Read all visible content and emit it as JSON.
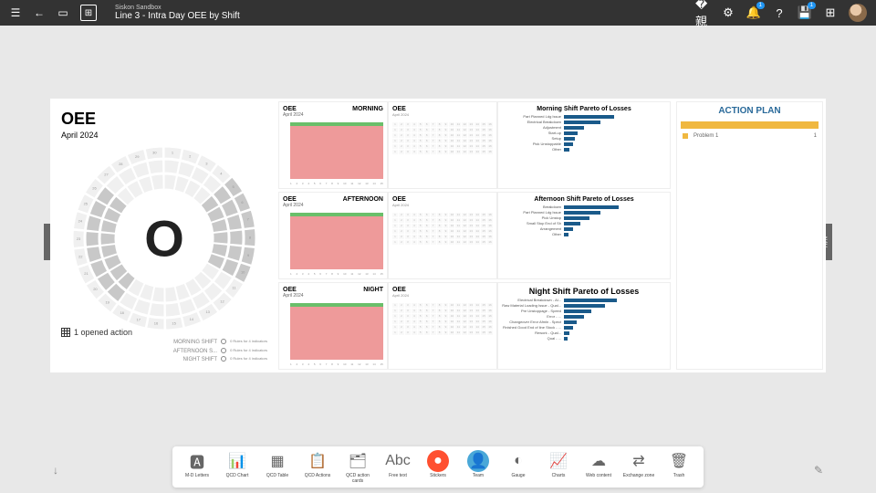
{
  "header": {
    "subtitle": "Siskon Sandbox",
    "title": "Line 3 - Intra Day OEE by Shift",
    "notif_badge": "1"
  },
  "oee_panel": {
    "title": "OEE",
    "date": "April 2024",
    "center_letter": "O",
    "opened_text": "1 opened action",
    "shifts": [
      "MORNING SHIFT",
      "AFTERNOON S...",
      "NIGHT SHIFT"
    ],
    "shift_hint": "0  Rules for 4 indicators"
  },
  "mini_charts": [
    {
      "title": "OEE",
      "label": "MORNING",
      "date": "April 2024"
    },
    {
      "title": "OEE",
      "label": "AFTERNOON",
      "date": "April 2024"
    },
    {
      "title": "OEE",
      "label": "NIGHT",
      "date": "April 2024"
    }
  ],
  "mini_cal": {
    "title": "OEE",
    "date": "April 2024"
  },
  "paretos": [
    {
      "title": "Morning Shift Pareto of Losses",
      "bars": [
        {
          "label": "Part Planned Ldg Issue",
          "v": 55
        },
        {
          "label": "Electrical Breakdown",
          "v": 40
        },
        {
          "label": "Adjustment",
          "v": 22
        },
        {
          "label": "Start-up",
          "v": 15
        },
        {
          "label": "Setup",
          "v": 12
        },
        {
          "label": "Pick Unstoppable",
          "v": 10
        },
        {
          "label": "Other",
          "v": 6
        }
      ]
    },
    {
      "title": "Afternoon Shift Pareto of Losses",
      "bars": [
        {
          "label": "Breakdown",
          "v": 60
        },
        {
          "label": "Part Planned Ldg Issue",
          "v": 40
        },
        {
          "label": "Pick Unstop",
          "v": 28
        },
        {
          "label": "Small Stop End of Sh",
          "v": 18
        },
        {
          "label": "Arrangement",
          "v": 10
        },
        {
          "label": "Other",
          "v": 5
        }
      ]
    },
    {
      "title": "Night Shift Pareto of Losses",
      "bars": [
        {
          "label": "Electrical Breakdown - Al...",
          "v": 58
        },
        {
          "label": "Raw Material Loading Issue - Qual...",
          "v": 45
        },
        {
          "label": "Pre Unstoppage - Speed",
          "v": 30
        },
        {
          "label": "Error - ...",
          "v": 22
        },
        {
          "label": "Changeover Error Afmln - Spect",
          "v": 14
        },
        {
          "label": "Finished Good End of line Stock - ...",
          "v": 10
        },
        {
          "label": "Rework - Qual...",
          "v": 6
        },
        {
          "label": "Qual - ...",
          "v": 4
        }
      ]
    }
  ],
  "action_plan": {
    "title": "ACTION PLAN",
    "row": {
      "id": "1",
      "text": "Problem 1"
    }
  },
  "nav": {
    "right": "NAV"
  },
  "tools": [
    {
      "label": "M-D Letters",
      "icon": "🅰",
      "bg": "#fff"
    },
    {
      "label": "QCD Chart",
      "icon": "📊",
      "bg": "#fff"
    },
    {
      "label": "QCD Table",
      "icon": "▦",
      "bg": "#fff"
    },
    {
      "label": "QCD Actions",
      "icon": "📋",
      "bg": "#fff"
    },
    {
      "label": "QCD action cards",
      "icon": "🗂",
      "bg": "#fff"
    },
    {
      "label": "Free text",
      "icon": "Abc",
      "bg": "#fff"
    },
    {
      "label": "Stickers",
      "icon": "●",
      "bg": "#ff5030"
    },
    {
      "label": "Team",
      "icon": "👤",
      "bg": "#4aa8d8"
    },
    {
      "label": "Gauge",
      "icon": "◐",
      "bg": "#fff"
    },
    {
      "label": "Charts",
      "icon": "📈",
      "bg": "#fff"
    },
    {
      "label": "Web content",
      "icon": "☁",
      "bg": "#fff"
    },
    {
      "label": "Exchange zone",
      "icon": "⇄",
      "bg": "#fff"
    },
    {
      "label": "Trash",
      "icon": "🗑",
      "bg": "#fff"
    }
  ],
  "colors": {
    "bar": "#1a5a8a",
    "chart_fill": "#ee9a9a",
    "chart_top": "#6abf6a",
    "action_accent": "#f0b840"
  }
}
